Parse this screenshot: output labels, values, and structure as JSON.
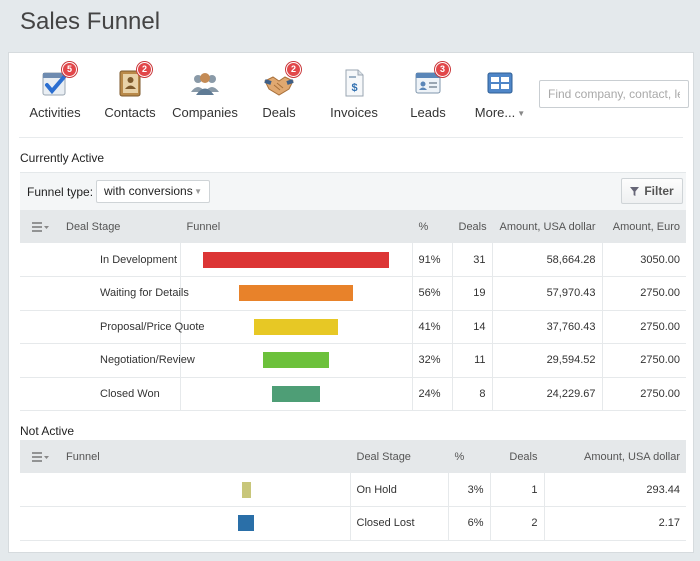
{
  "page": {
    "title": "Sales Funnel"
  },
  "toolbar": {
    "items": [
      {
        "label": "Activities",
        "icon": "activities-icon",
        "badge": "5"
      },
      {
        "label": "Contacts",
        "icon": "contacts-icon",
        "badge": "2"
      },
      {
        "label": "Companies",
        "icon": "companies-icon",
        "badge": ""
      },
      {
        "label": "Deals",
        "icon": "deals-icon",
        "badge": "2"
      },
      {
        "label": "Invoices",
        "icon": "invoices-icon",
        "badge": ""
      },
      {
        "label": "Leads",
        "icon": "leads-icon",
        "badge": "3"
      },
      {
        "label": "More...",
        "icon": "more-icon",
        "badge": ""
      }
    ],
    "search_placeholder": "Find company, contact, lead"
  },
  "active": {
    "section_label": "Currently Active",
    "funnel_type_label": "Funnel type:",
    "funnel_type_value": "with conversions",
    "filter_label": "Filter",
    "headers": {
      "stage": "Deal Stage",
      "funnel": "Funnel",
      "percent": "%",
      "deals": "Deals",
      "amount_usd": "Amount, USA dollar",
      "amount_eur": "Amount, Euro"
    },
    "rows": [
      {
        "stage": "In Development",
        "percent": "91%",
        "deals": "31",
        "amount_usd": "58,664.28",
        "amount_eur": "3050.00",
        "fill": 0.91,
        "color": "#dc3535"
      },
      {
        "stage": "Waiting for Details",
        "percent": "56%",
        "deals": "19",
        "amount_usd": "57,970.43",
        "amount_eur": "2750.00",
        "fill": 0.56,
        "color": "#e8822a"
      },
      {
        "stage": "Proposal/Price Quote",
        "percent": "41%",
        "deals": "14",
        "amount_usd": "37,760.43",
        "amount_eur": "2750.00",
        "fill": 0.41,
        "color": "#e7c825"
      },
      {
        "stage": "Negotiation/Review",
        "percent": "32%",
        "deals": "11",
        "amount_usd": "29,594.52",
        "amount_eur": "2750.00",
        "fill": 0.32,
        "color": "#6cc13b"
      },
      {
        "stage": "Closed Won",
        "percent": "24%",
        "deals": "8",
        "amount_usd": "24,229.67",
        "amount_eur": "2750.00",
        "fill": 0.24,
        "color": "#4e9e76"
      }
    ]
  },
  "inactive": {
    "section_label": "Not Active",
    "headers": {
      "funnel": "Funnel",
      "stage": "Deal Stage",
      "percent": "%",
      "deals": "Deals",
      "amount_usd": "Amount, USA dollar"
    },
    "rows": [
      {
        "stage": "On Hold",
        "percent": "3%",
        "deals": "1",
        "amount_usd": "293.44",
        "fill": 0.03,
        "color": "#c8c67a"
      },
      {
        "stage": "Closed Lost",
        "percent": "6%",
        "deals": "2",
        "amount_usd": "2.17",
        "fill": 0.06,
        "color": "#2a6fa8"
      }
    ]
  }
}
